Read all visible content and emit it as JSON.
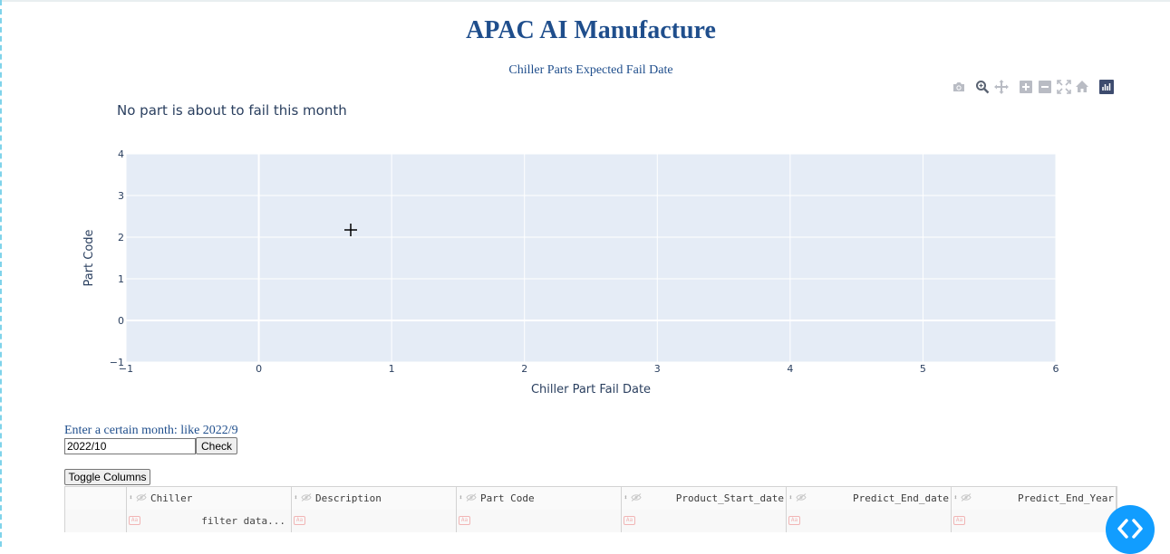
{
  "header": {
    "title": "APAC AI Manufacture",
    "subtitle": "Chiller Parts Expected Fail Date"
  },
  "modebar": {
    "icons": [
      "camera-icon",
      "zoom-icon",
      "pan-icon",
      "zoom-in-icon",
      "zoom-out-icon",
      "autoscale-icon",
      "reset-axes-icon",
      "plotly-logo-icon"
    ]
  },
  "chart_data": {
    "type": "scatter",
    "title": "No part is about to fail this month",
    "xlabel": "Chiller Part Fail Date",
    "ylabel": "Part Code",
    "xlim": [
      -1,
      6
    ],
    "ylim": [
      -1,
      4
    ],
    "xticks": [
      -1,
      0,
      1,
      2,
      3,
      4,
      5,
      6
    ],
    "yticks": [
      -1,
      0,
      1,
      2,
      3,
      4
    ],
    "series": [],
    "grid": true,
    "background": "#e5ecf6"
  },
  "controls": {
    "month_label": "Enter a certain month: like 2022/9",
    "month_value": "2022/10",
    "check_label": "Check",
    "toggle_label": "Toggle Columns"
  },
  "table": {
    "columns": [
      "Chiller",
      "Description",
      "Part Code",
      "Product_Start_date",
      "Predict_End_date",
      "Predict_End_Year"
    ],
    "filter_placeholder": "filter data..."
  },
  "colors": {
    "title": "#1f4e8c",
    "plot_bg": "#e5ecf6",
    "fab": "#119dff"
  }
}
